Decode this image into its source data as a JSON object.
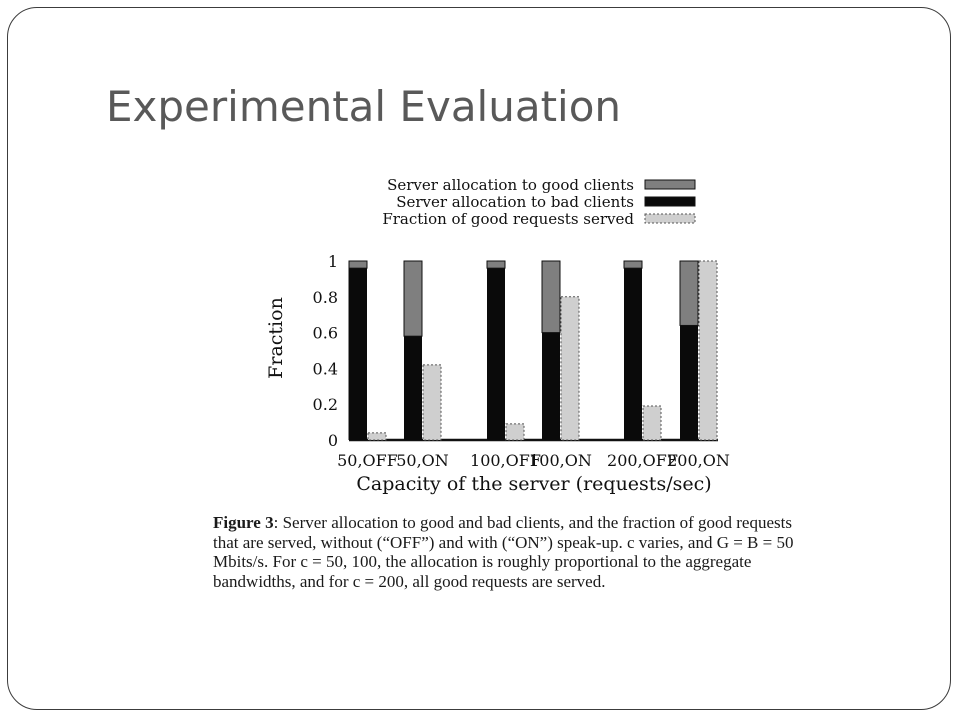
{
  "slide": {
    "title": "Experimental Evaluation"
  },
  "colors": {
    "good": "#7f7f7f",
    "bad": "#0a0a0a",
    "fraction": "#cfcfcf",
    "frame": "#3c3c3c"
  },
  "chart_data": {
    "type": "bar",
    "stacked_series": [
      "Server allocation to bad clients",
      "Server allocation to good clients"
    ],
    "categories": [
      "50,OFF",
      "50,ON",
      "100,OFF",
      "100,ON",
      "200,OFF",
      "200,ON"
    ],
    "series": [
      {
        "name": "Server allocation to good clients",
        "values": [
          0.04,
          0.42,
          0.04,
          0.4,
          0.04,
          0.36
        ]
      },
      {
        "name": "Server allocation to bad clients",
        "values": [
          0.96,
          0.58,
          0.96,
          0.6,
          0.96,
          0.64
        ]
      },
      {
        "name": "Fraction of good requests served",
        "values": [
          0.04,
          0.42,
          0.09,
          0.8,
          0.19,
          1.0
        ]
      }
    ],
    "xlabel": "Capacity of the server (requests/sec)",
    "ylabel": "Fraction",
    "ylim": [
      0,
      1
    ],
    "yticks": [
      "0",
      "0.2",
      "0.4",
      "0.6",
      "0.8",
      "1"
    ],
    "legend_position": "top",
    "grid": false
  },
  "caption": {
    "label": "Figure 3",
    "text": ": Server allocation to good and bad clients, and the fraction of good requests that are served, without (“OFF”) and with (“ON”) speak-up. c varies, and G = B = 50 Mbits/s. For c = 50, 100, the allocation is roughly proportional to the aggregate bandwidths, and for c = 200, all good requests are served."
  }
}
